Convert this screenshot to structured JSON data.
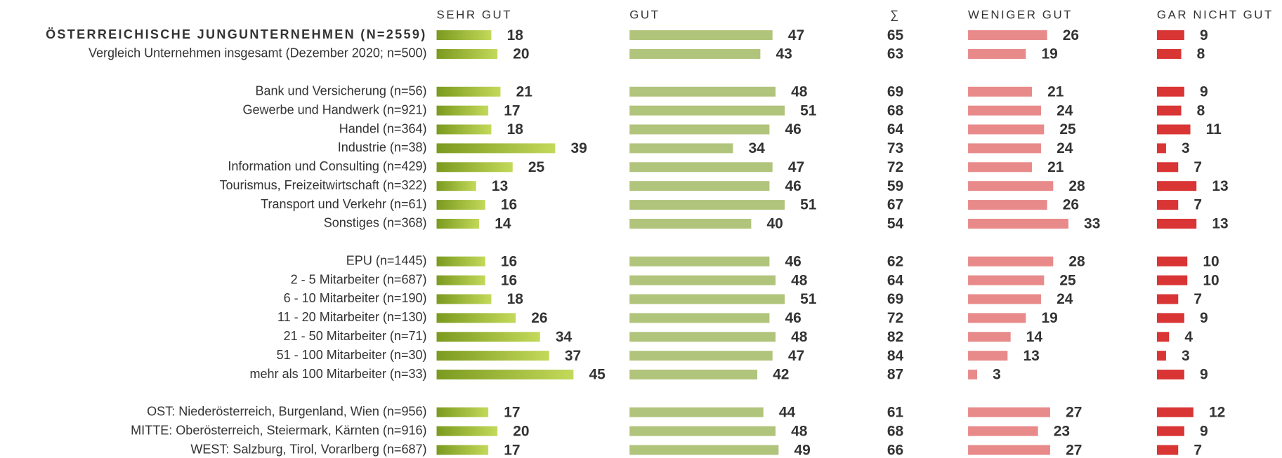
{
  "chart_data": {
    "type": "bar",
    "categories": [
      "ÖSTERREICHISCHE JUNGUNTERNEHMEN (N=2559)",
      "Vergleich Unternehmen insgesamt (Dezember 2020; n=500)",
      "Bank und Versicherung (n=56)",
      "Gewerbe und Handwerk (n=921)",
      "Handel (n=364)",
      "Industrie (n=38)",
      "Information und Consulting (n=429)",
      "Tourismus, Freizeitwirtschaft (n=322)",
      "Transport und Verkehr (n=61)",
      "Sonstiges (n=368)",
      "EPU (n=1445)",
      "2 - 5 Mitarbeiter (n=687)",
      "6 - 10 Mitarbeiter (n=190)",
      "11 - 20 Mitarbeiter (n=130)",
      "21 - 50 Mitarbeiter (n=71)",
      "51 - 100 Mitarbeiter (n=30)",
      "mehr als 100 Mitarbeiter (n=33)",
      "OST: Niederösterreich, Burgenland, Wien (n=956)",
      "MITTE: Oberösterreich, Steiermark, Kärnten (n=916)",
      "WEST: Salzburg, Tirol, Vorarlberg (n=687)"
    ],
    "series": [
      {
        "name": "SEHR GUT",
        "color": "#c3d95a",
        "values": [
          18,
          20,
          21,
          17,
          18,
          39,
          25,
          13,
          16,
          14,
          16,
          16,
          18,
          26,
          34,
          37,
          45,
          17,
          20,
          17
        ]
      },
      {
        "name": "GUT",
        "color": "#b1c47b",
        "values": [
          47,
          43,
          48,
          51,
          46,
          34,
          47,
          46,
          51,
          40,
          46,
          48,
          51,
          46,
          48,
          47,
          42,
          44,
          48,
          49
        ]
      },
      {
        "name": "∑",
        "values": [
          65,
          63,
          69,
          68,
          64,
          73,
          72,
          59,
          67,
          54,
          62,
          64,
          69,
          72,
          82,
          84,
          87,
          61,
          68,
          66
        ]
      },
      {
        "name": "WENIGER GUT",
        "color": "#e98a8a",
        "values": [
          26,
          19,
          21,
          24,
          25,
          24,
          21,
          28,
          26,
          33,
          28,
          25,
          24,
          19,
          14,
          13,
          3,
          27,
          23,
          27
        ]
      },
      {
        "name": "GAR NICHT GUT",
        "color": "#d93535",
        "values": [
          9,
          8,
          9,
          8,
          11,
          3,
          7,
          13,
          7,
          13,
          10,
          10,
          7,
          9,
          4,
          3,
          9,
          12,
          9,
          7
        ]
      }
    ]
  }
}
